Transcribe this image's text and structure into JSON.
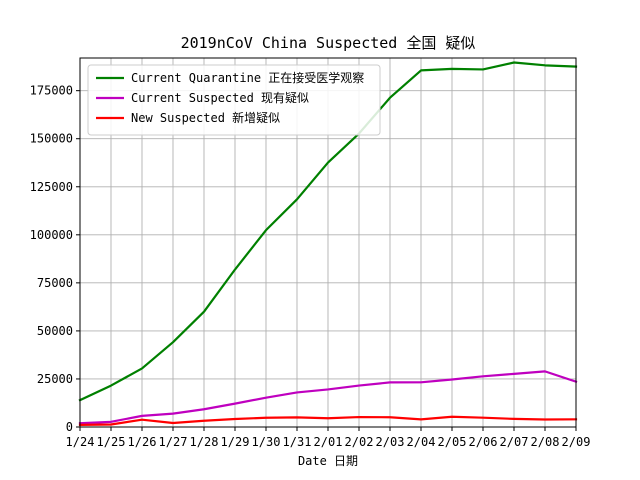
{
  "chart_data": {
    "type": "line",
    "title": "2019nCoV China Suspected 全国 疑似",
    "xlabel": "Date 日期",
    "ylabel": "",
    "categories": [
      "1/24",
      "1/25",
      "1/26",
      "1/27",
      "1/28",
      "1/29",
      "1/30",
      "1/31",
      "2/01",
      "2/02",
      "2/03",
      "2/04",
      "2/05",
      "2/06",
      "2/07",
      "2/08",
      "2/09"
    ],
    "ylim": [
      0,
      192000
    ],
    "yticks": [
      0,
      25000,
      50000,
      75000,
      100000,
      125000,
      150000,
      175000
    ],
    "grid": true,
    "legend_position": "top-left",
    "series": [
      {
        "name": "Current Quarantine 正在接受医学观察",
        "color": "#008000",
        "values": [
          13967,
          21556,
          30453,
          44132,
          59990,
          81947,
          102427,
          118478,
          137594,
          152700,
          171329,
          185555,
          186354,
          186045,
          189660,
          188183,
          187518
        ]
      },
      {
        "name": "Current Suspected 现有疑似",
        "color": "#bf00bf",
        "values": [
          1965,
          2684,
          5794,
          6973,
          9239,
          12167,
          15238,
          17988,
          19544,
          21558,
          23214,
          23260,
          24702,
          26359,
          27657,
          28942,
          23589
        ]
      },
      {
        "name": "New Suspected 新增疑似",
        "color": "#ff0000",
        "values": [
          1118,
          1309,
          3806,
          2077,
          3248,
          4148,
          4812,
          5019,
          4562,
          5173,
          5072,
          3971,
          5328,
          4833,
          4214,
          3916,
          4008
        ]
      }
    ]
  }
}
